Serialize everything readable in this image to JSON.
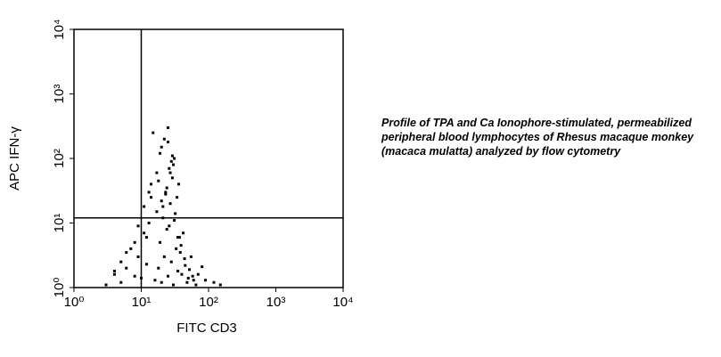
{
  "chart_data": {
    "type": "scatter",
    "xlabel": "FITC CD3",
    "ylabel": "APC IFN-γ",
    "caption": "Profile of TPA and Ca Ionophore-stimulated, permeabilized peripheral blood lymphocytes of Rhesus macaque monkey (macaca mulatta) analyzed by flow cytometry",
    "log_x": true,
    "log_y": true,
    "color": "#000000",
    "xlim": [
      1,
      10000
    ],
    "ylim": [
      1,
      10000
    ],
    "xticks": [
      {
        "value": 1,
        "label": "10⁰"
      },
      {
        "value": 10,
        "label": "10¹"
      },
      {
        "value": 100,
        "label": "10²"
      },
      {
        "value": 1000,
        "label": "10³"
      },
      {
        "value": 10000,
        "label": "10⁴"
      }
    ],
    "yticks": [
      {
        "value": 1,
        "label": "10⁰"
      },
      {
        "value": 10,
        "label": "10¹"
      },
      {
        "value": 100,
        "label": "10²"
      },
      {
        "value": 1000,
        "label": "10³"
      },
      {
        "value": 10000,
        "label": "10⁴"
      }
    ],
    "quadrant_x": 10,
    "quadrant_y": 12,
    "x": [
      20,
      25,
      18,
      30,
      22,
      35,
      28,
      16,
      40,
      19,
      24,
      33,
      45,
      21,
      27,
      17,
      38,
      23,
      29,
      50,
      14,
      26,
      31,
      20,
      36,
      12,
      9,
      8,
      6,
      5,
      4,
      3,
      7,
      11,
      13,
      60,
      70,
      80,
      55,
      65,
      22,
      25,
      19,
      30,
      27,
      18,
      24,
      34,
      21,
      28,
      15,
      42,
      26,
      32,
      20,
      23,
      17,
      29,
      37,
      25,
      10,
      12,
      8,
      9,
      6,
      5,
      4,
      14,
      11,
      13,
      48,
      52,
      44,
      58,
      39,
      35,
      31,
      90,
      120,
      150
    ],
    "y": [
      1.2,
      1.5,
      2,
      1.1,
      3,
      1.8,
      2.5,
      1.3,
      1.6,
      5,
      8,
      4,
      2.2,
      12,
      20,
      15,
      3.5,
      30,
      50,
      1.4,
      25,
      70,
      100,
      150,
      40,
      6,
      3,
      1.5,
      2,
      1.2,
      1.8,
      1.1,
      4,
      7,
      10,
      1.3,
      1.6,
      2.1,
      3,
      1.1,
      200,
      300,
      120,
      80,
      60,
      45,
      35,
      25,
      18,
      90,
      250,
      7,
      9,
      14,
      22,
      28,
      60,
      110,
      6,
      180,
      1.4,
      2.3,
      5,
      9,
      3.5,
      2.5,
      1.6,
      40,
      18,
      30,
      1.2,
      1.9,
      2.8,
      1.5,
      4.5,
      6,
      11,
      1.3,
      1.2,
      1.1
    ]
  }
}
